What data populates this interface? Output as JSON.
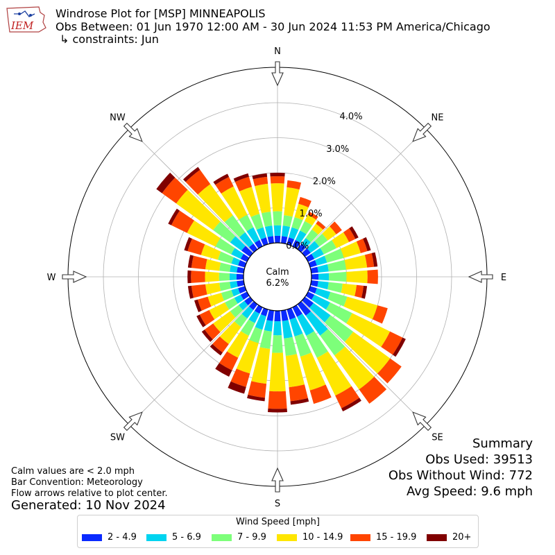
{
  "header": {
    "title": "Windrose Plot for [MSP] MINNEAPOLIS",
    "subtitle": "Obs Between: 01 Jun 1970 12:00 AM - 30 Jun 2024 11:53 PM America/Chicago",
    "constraints": "↳ constraints: Jun",
    "logo_text": "IEM"
  },
  "summary": {
    "heading": "Summary",
    "obs_used": "Obs Used: 39513",
    "obs_without_wind": "Obs Without Wind: 772",
    "avg_speed": "Avg Speed: 9.6 mph"
  },
  "notes": {
    "calm_def": "Calm values are < 2.0 mph",
    "bar_convention": "Bar Convention: Meteorology",
    "flow_arrows": "Flow arrows relative to plot center.",
    "generated": "Generated: 10 Nov 2024"
  },
  "chart_data": {
    "type": "windrose",
    "calm_label": "Calm",
    "calm_value": "6.2%",
    "radial_ticks": [
      "0.0%",
      "1.0%",
      "2.0%",
      "3.0%",
      "4.0%"
    ],
    "radial_max": 5.0,
    "compass_labels": [
      "N",
      "NE",
      "E",
      "SE",
      "S",
      "SW",
      "W",
      "NW"
    ],
    "legend_title": "Wind Speed [mph]",
    "bins": [
      {
        "label": "2 - 4.9",
        "color": "#0a2aff"
      },
      {
        "label": "5 - 6.9",
        "color": "#00d4f0"
      },
      {
        "label": "7 - 9.9",
        "color": "#7dff7a"
      },
      {
        "label": "10 - 14.9",
        "color": "#ffe600"
      },
      {
        "label": "15 - 19.9",
        "color": "#ff4500"
      },
      {
        "label": "20+",
        "color": "#800000"
      }
    ],
    "direction_step_degrees": 10,
    "directions_deg": [
      0,
      10,
      20,
      30,
      40,
      50,
      60,
      70,
      80,
      90,
      100,
      110,
      120,
      130,
      140,
      150,
      160,
      170,
      180,
      190,
      200,
      210,
      220,
      230,
      240,
      250,
      260,
      270,
      280,
      290,
      300,
      310,
      320,
      330,
      340,
      350
    ],
    "values_cumulative_pct": [
      [
        0.2,
        0.5,
        0.9,
        1.7,
        1.9,
        2.0
      ],
      [
        0.2,
        0.5,
        0.8,
        1.6,
        1.8,
        1.8
      ],
      [
        0.2,
        0.5,
        0.8,
        1.2,
        1.4,
        1.4
      ],
      [
        0.2,
        0.5,
        0.8,
        1.0,
        1.1,
        1.1
      ],
      [
        0.2,
        0.4,
        0.7,
        0.9,
        1.0,
        1.0
      ],
      [
        0.2,
        0.5,
        0.8,
        1.1,
        1.3,
        1.3
      ],
      [
        0.2,
        0.5,
        0.9,
        1.3,
        1.5,
        1.6
      ],
      [
        0.2,
        0.5,
        1.0,
        1.5,
        1.7,
        1.8
      ],
      [
        0.2,
        0.5,
        1.0,
        1.6,
        1.8,
        1.9
      ],
      [
        0.2,
        0.5,
        1.0,
        1.6,
        1.9,
        1.9
      ],
      [
        0.2,
        0.5,
        0.9,
        1.3,
        1.5,
        1.6
      ],
      [
        0.2,
        0.6,
        1.1,
        2.0,
        2.3,
        2.3
      ],
      [
        0.2,
        0.7,
        1.4,
        2.6,
        3.0,
        3.1
      ],
      [
        0.3,
        0.9,
        1.7,
        3.0,
        3.4,
        3.4
      ],
      [
        0.4,
        1.1,
        1.8,
        3.0,
        3.5,
        3.5
      ],
      [
        0.3,
        0.9,
        1.6,
        2.8,
        3.2,
        3.3
      ],
      [
        0.3,
        0.8,
        1.4,
        2.4,
        2.8,
        2.8
      ],
      [
        0.3,
        0.8,
        1.3,
        2.2,
        2.6,
        2.7
      ],
      [
        0.3,
        0.7,
        1.2,
        2.3,
        2.8,
        2.9
      ],
      [
        0.3,
        0.6,
        1.1,
        2.1,
        2.5,
        2.6
      ],
      [
        0.2,
        0.6,
        1.0,
        1.9,
        2.3,
        2.5
      ],
      [
        0.2,
        0.5,
        0.9,
        1.6,
        2.0,
        2.2
      ],
      [
        0.2,
        0.5,
        0.8,
        1.4,
        1.7,
        1.8
      ],
      [
        0.2,
        0.4,
        0.7,
        1.3,
        1.6,
        1.7
      ],
      [
        0.2,
        0.4,
        0.7,
        1.2,
        1.5,
        1.6
      ],
      [
        0.2,
        0.4,
        0.7,
        1.1,
        1.4,
        1.5
      ],
      [
        0.2,
        0.4,
        0.7,
        1.1,
        1.5,
        1.6
      ],
      [
        0.2,
        0.4,
        0.7,
        1.1,
        1.5,
        1.6
      ],
      [
        0.2,
        0.4,
        0.7,
        1.1,
        1.5,
        1.6
      ],
      [
        0.2,
        0.4,
        0.8,
        1.3,
        1.7,
        1.8
      ],
      [
        0.2,
        0.5,
        1.0,
        1.9,
        2.4,
        2.5
      ],
      [
        0.3,
        0.7,
        1.3,
        2.6,
        3.1,
        3.3
      ],
      [
        0.2,
        0.6,
        1.2,
        2.3,
        2.8,
        2.9
      ],
      [
        0.2,
        0.6,
        1.0,
        1.9,
        2.2,
        2.3
      ],
      [
        0.2,
        0.5,
        0.9,
        1.7,
        2.0,
        2.1
      ],
      [
        0.2,
        0.5,
        0.9,
        1.7,
        1.9,
        2.0
      ]
    ]
  }
}
